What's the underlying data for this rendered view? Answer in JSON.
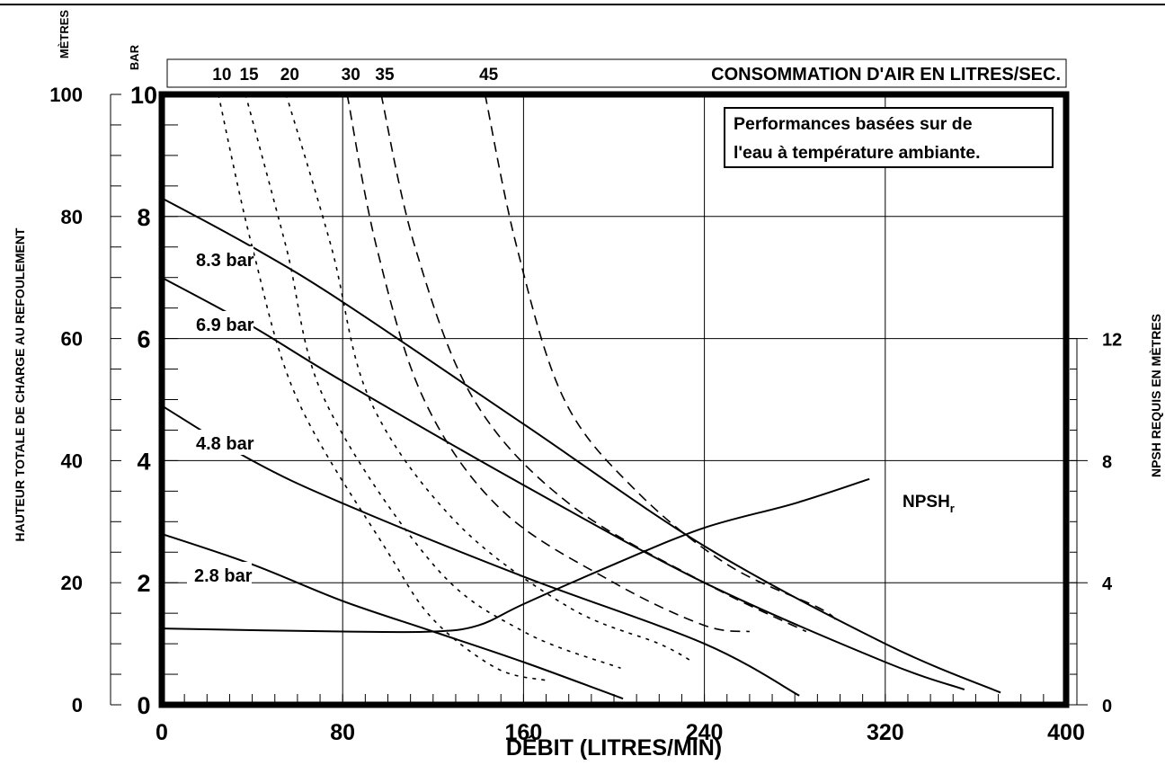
{
  "chart_data": {
    "type": "line",
    "xlabel": "DÉBIT (LITRES/MIN)",
    "xlim": [
      0,
      400
    ],
    "x_ticks": [
      0,
      80,
      160,
      240,
      320,
      400
    ],
    "y_left_bar": {
      "label": "BAR",
      "lim": [
        0,
        10
      ],
      "ticks": [
        0,
        2,
        4,
        6,
        8,
        10
      ]
    },
    "y_left_m": {
      "label": "MÈTRES",
      "ticks": [
        0,
        20,
        40,
        60,
        80,
        100
      ]
    },
    "ylabel": "HAUTEUR TOTALE DE CHARGE AU REFOULEMENT",
    "y_right": {
      "label": "NPSH REQUIS EN MÈTRES",
      "ticks": [
        0,
        4,
        8,
        12
      ]
    },
    "air_axis_label": "CONSOMMATION D'AIR EN LITRES/SEC.",
    "note_lines": [
      "Performances basées sur de",
      "l'eau à température ambiante."
    ],
    "npsh_label": {
      "main": "NPSH",
      "sub": "r"
    },
    "pressure_series": [
      {
        "name": "8.3 bar",
        "points": [
          [
            0,
            8.3
          ],
          [
            40,
            7.5
          ],
          [
            80,
            6.6
          ],
          [
            160,
            4.6
          ],
          [
            240,
            2.6
          ],
          [
            320,
            1.0
          ],
          [
            371,
            0.2
          ]
        ]
      },
      {
        "name": "6.9 bar",
        "points": [
          [
            0,
            7.0
          ],
          [
            40,
            6.2
          ],
          [
            80,
            5.3
          ],
          [
            160,
            3.6
          ],
          [
            240,
            2.0
          ],
          [
            320,
            0.7
          ],
          [
            355,
            0.25
          ]
        ]
      },
      {
        "name": "4.8 bar",
        "points": [
          [
            0,
            4.9
          ],
          [
            40,
            4.0
          ],
          [
            80,
            3.3
          ],
          [
            160,
            2.1
          ],
          [
            240,
            1.0
          ],
          [
            282,
            0.15
          ]
        ]
      },
      {
        "name": "2.8 bar",
        "points": [
          [
            0,
            2.8
          ],
          [
            40,
            2.3
          ],
          [
            80,
            1.7
          ],
          [
            120,
            1.2
          ],
          [
            160,
            0.7
          ],
          [
            204,
            0.1
          ]
        ]
      }
    ],
    "npsh_series": {
      "points": [
        [
          0,
          1.25
        ],
        [
          80,
          1.2
        ],
        [
          120,
          1.2
        ],
        [
          140,
          1.3
        ],
        [
          160,
          1.65
        ],
        [
          200,
          2.3
        ],
        [
          240,
          2.9
        ],
        [
          280,
          3.3
        ],
        [
          313,
          3.7
        ]
      ]
    },
    "air_consumption_curves": [
      {
        "label": "10",
        "points": [
          [
            25,
            10
          ],
          [
            40,
            7.5
          ],
          [
            60,
            5
          ],
          [
            100,
            2.5
          ],
          [
            120,
            1.4
          ],
          [
            148,
            0.6
          ],
          [
            170,
            0.4
          ]
        ]
      },
      {
        "label": "15",
        "points": [
          [
            37,
            10
          ],
          [
            55,
            7.5
          ],
          [
            72,
            5
          ],
          [
            120,
            2.3
          ],
          [
            160,
            1.2
          ],
          [
            203,
            0.6
          ]
        ]
      },
      {
        "label": "20",
        "points": [
          [
            55,
            10
          ],
          [
            75,
            7.5
          ],
          [
            92,
            5
          ],
          [
            130,
            3
          ],
          [
            180,
            1.6
          ],
          [
            220,
            1.0
          ],
          [
            235,
            0.7
          ]
        ]
      },
      {
        "label": "30",
        "points": [
          [
            82,
            10
          ],
          [
            95,
            7.5
          ],
          [
            116,
            5
          ],
          [
            150,
            3.2
          ],
          [
            200,
            2.0
          ],
          [
            240,
            1.3
          ],
          [
            260,
            1.2
          ]
        ]
      },
      {
        "label": "35",
        "points": [
          [
            97,
            10
          ],
          [
            112,
            7.5
          ],
          [
            138,
            5
          ],
          [
            180,
            3.3
          ],
          [
            240,
            2.0
          ],
          [
            285,
            1.2
          ]
        ]
      },
      {
        "label": "45",
        "points": [
          [
            143,
            10
          ],
          [
            157,
            7.5
          ],
          [
            178,
            5
          ],
          [
            210,
            3.5
          ],
          [
            250,
            2.3
          ],
          [
            290,
            1.6
          ],
          [
            298,
            1.4
          ]
        ]
      }
    ]
  }
}
